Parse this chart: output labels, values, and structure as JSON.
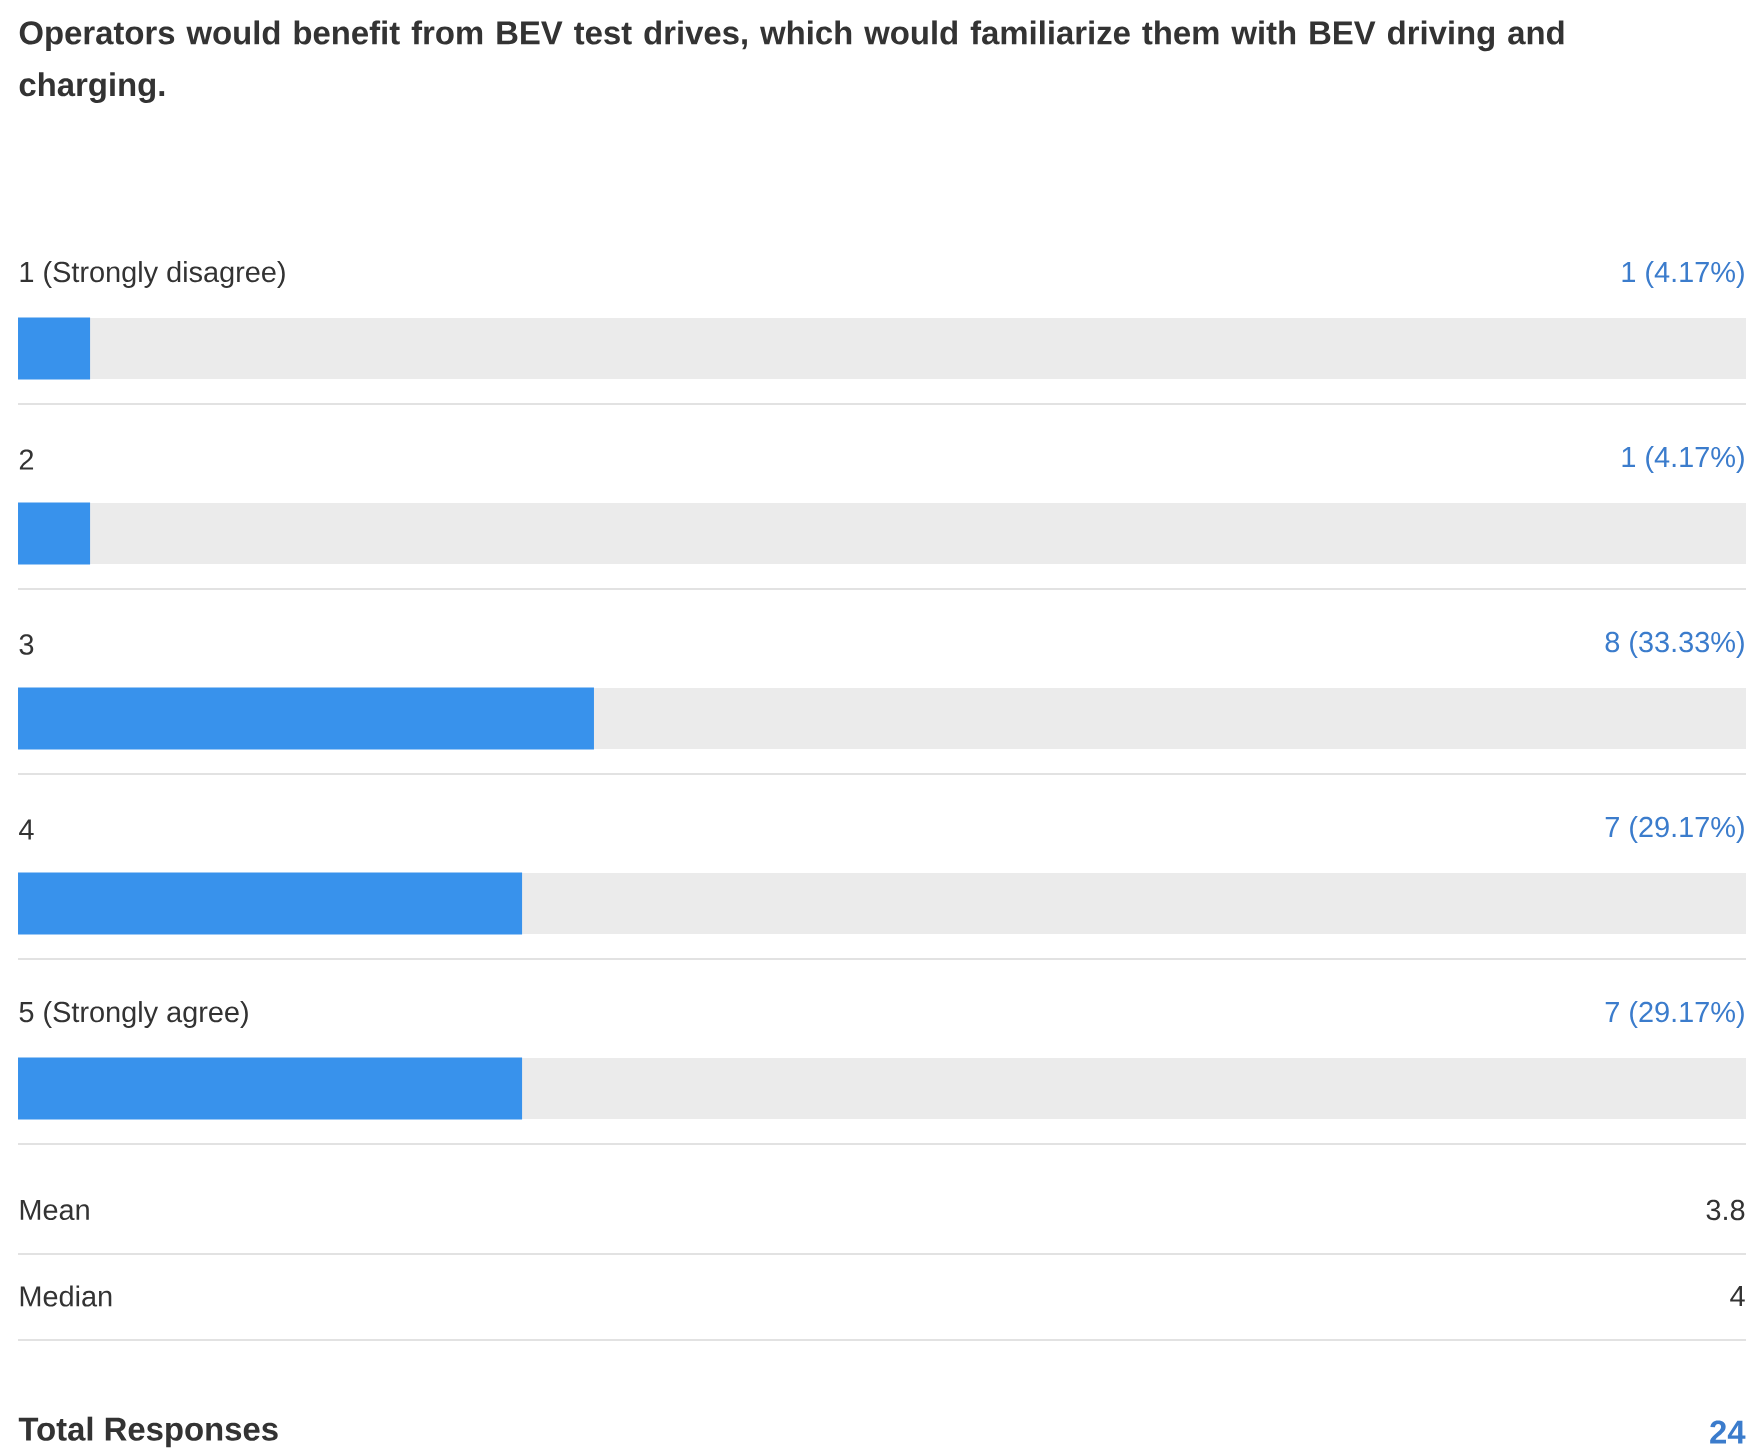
{
  "chart_data": {
    "type": "bar",
    "orientation": "horizontal",
    "title": "Operators would benefit from BEV test drives, which would familiarize them with BEV driving and charging.",
    "categories": [
      "1 (Strongly disagree)",
      "2",
      "3",
      "4",
      "5 (Strongly agree)"
    ],
    "values": [
      4.17,
      4.17,
      33.33,
      29.17,
      29.17
    ],
    "value_labels": [
      "1 (4.17%)",
      "1 (4.17%)",
      "8 (33.33%)",
      "7 (29.17%)",
      "7 (29.17%)"
    ],
    "color": "#3892ec",
    "xlim": [
      0,
      100
    ],
    "annotations": [
      "Mean",
      "3.8",
      "Median",
      "4",
      "Total Responses",
      "24"
    ]
  }
}
